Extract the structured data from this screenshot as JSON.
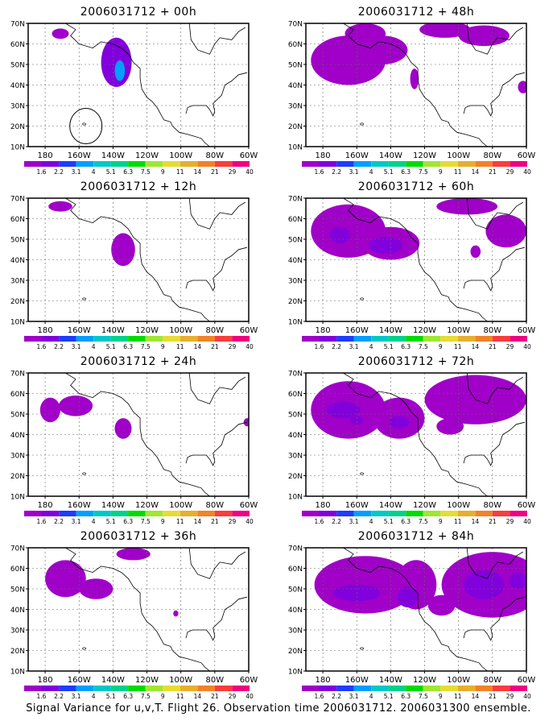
{
  "panels": [
    {
      "title": "2006031712 + 00h",
      "overlay": "ellipse",
      "blobs": [
        {
          "cx": -138,
          "cy": 51,
          "rx": 9,
          "ry": 12,
          "level": 1
        },
        {
          "cx": -171,
          "cy": 65,
          "rx": 5,
          "ry": 2.5,
          "level": 0
        },
        {
          "cx": -136,
          "cy": 47,
          "rx": 3,
          "ry": 5,
          "level": 3
        }
      ]
    },
    {
      "title": "2006031712 + 48h",
      "blobs": [
        {
          "cx": -165,
          "cy": 52,
          "rx": 22,
          "ry": 12,
          "level": 0
        },
        {
          "cx": -155,
          "cy": 65,
          "rx": 12,
          "ry": 5,
          "level": 0
        },
        {
          "cx": -145,
          "cy": 57,
          "rx": 15,
          "ry": 7,
          "level": 0
        },
        {
          "cx": -108,
          "cy": 67,
          "rx": 15,
          "ry": 4,
          "level": 0
        },
        {
          "cx": -85,
          "cy": 64,
          "rx": 15,
          "ry": 5,
          "level": 0
        },
        {
          "cx": -126,
          "cy": 43,
          "rx": 2.5,
          "ry": 5,
          "level": 0
        },
        {
          "cx": -62,
          "cy": 39,
          "rx": 3,
          "ry": 3,
          "level": 0
        }
      ]
    },
    {
      "title": "2006031712 + 12h",
      "blobs": [
        {
          "cx": -134,
          "cy": 45,
          "rx": 7,
          "ry": 8,
          "level": 0
        },
        {
          "cx": -171,
          "cy": 66,
          "rx": 7,
          "ry": 2.5,
          "level": 0
        }
      ]
    },
    {
      "title": "2006031712 + 60h",
      "blobs": [
        {
          "cx": -165,
          "cy": 54,
          "rx": 22,
          "ry": 13,
          "level": 0
        },
        {
          "cx": -140,
          "cy": 48,
          "rx": 17,
          "ry": 8,
          "level": 0
        },
        {
          "cx": -170,
          "cy": 52,
          "rx": 6,
          "ry": 4,
          "level": 1
        },
        {
          "cx": -143,
          "cy": 47,
          "rx": 10,
          "ry": 4,
          "level": 1
        },
        {
          "cx": -95,
          "cy": 66,
          "rx": 18,
          "ry": 4,
          "level": 0
        },
        {
          "cx": -72,
          "cy": 54,
          "rx": 12,
          "ry": 8,
          "level": 0
        },
        {
          "cx": -90,
          "cy": 44,
          "rx": 3,
          "ry": 3,
          "level": 0
        }
      ]
    },
    {
      "title": "2006031712 + 24h",
      "blobs": [
        {
          "cx": -162,
          "cy": 54,
          "rx": 10,
          "ry": 5,
          "level": 0
        },
        {
          "cx": -177,
          "cy": 52,
          "rx": 6,
          "ry": 6,
          "level": 0
        },
        {
          "cx": -134,
          "cy": 43,
          "rx": 5,
          "ry": 5,
          "level": 0
        },
        {
          "cx": -61,
          "cy": 46,
          "rx": 2,
          "ry": 2,
          "level": 0
        }
      ]
    },
    {
      "title": "2006031712 + 72h",
      "blobs": [
        {
          "cx": -165,
          "cy": 52,
          "rx": 22,
          "ry": 14,
          "level": 0
        },
        {
          "cx": -135,
          "cy": 48,
          "rx": 15,
          "ry": 10,
          "level": 0
        },
        {
          "cx": -90,
          "cy": 57,
          "rx": 30,
          "ry": 12,
          "level": 0
        },
        {
          "cx": -105,
          "cy": 44,
          "rx": 8,
          "ry": 4,
          "level": 0
        },
        {
          "cx": -168,
          "cy": 52,
          "rx": 10,
          "ry": 4,
          "level": 1
        },
        {
          "cx": -135,
          "cy": 46,
          "rx": 6,
          "ry": 3,
          "level": 1
        },
        {
          "cx": -160,
          "cy": 47,
          "rx": 4,
          "ry": 2,
          "level": 1
        }
      ]
    },
    {
      "title": "2006031712 + 36h",
      "blobs": [
        {
          "cx": -168,
          "cy": 55,
          "rx": 12,
          "ry": 9,
          "level": 0
        },
        {
          "cx": -150,
          "cy": 50,
          "rx": 10,
          "ry": 5,
          "level": 0
        },
        {
          "cx": -128,
          "cy": 67,
          "rx": 10,
          "ry": 3,
          "level": 0
        },
        {
          "cx": -103,
          "cy": 38,
          "rx": 1.5,
          "ry": 1.5,
          "level": 0
        }
      ]
    },
    {
      "title": "2006031712 + 84h",
      "blobs": [
        {
          "cx": -155,
          "cy": 52,
          "rx": 30,
          "ry": 14,
          "level": 0
        },
        {
          "cx": -125,
          "cy": 52,
          "rx": 12,
          "ry": 12,
          "level": 0
        },
        {
          "cx": -80,
          "cy": 52,
          "rx": 30,
          "ry": 16,
          "level": 0
        },
        {
          "cx": -110,
          "cy": 42,
          "rx": 8,
          "ry": 5,
          "level": 0
        },
        {
          "cx": -160,
          "cy": 48,
          "rx": 14,
          "ry": 4,
          "level": 1
        },
        {
          "cx": -130,
          "cy": 46,
          "rx": 6,
          "ry": 5,
          "level": 1
        },
        {
          "cx": -85,
          "cy": 52,
          "rx": 12,
          "ry": 7,
          "level": 1
        },
        {
          "cx": -65,
          "cy": 54,
          "rx": 5,
          "ry": 4,
          "level": 1
        }
      ]
    }
  ],
  "map": {
    "lon_range": [
      -190,
      -60
    ],
    "lat_range": [
      10,
      70
    ],
    "lon_ticks": [
      -180,
      -160,
      -140,
      -120,
      -100,
      -80,
      -60
    ],
    "lon_labels": [
      "180",
      "160W",
      "140W",
      "120W",
      "100W",
      "80W",
      "60W"
    ],
    "lat_ticks": [
      10,
      20,
      30,
      40,
      50,
      60,
      70
    ],
    "lat_labels": [
      "10N",
      "20N",
      "30N",
      "40N",
      "50N",
      "60N",
      "70N"
    ]
  },
  "colorbar": {
    "colors": [
      "#a000c8",
      "#8200dc",
      "#1e3cff",
      "#00a0ff",
      "#00c8c8",
      "#00d28c",
      "#00dc00",
      "#a0e632",
      "#e6dc32",
      "#e6af2d",
      "#f08228",
      "#fa3c3c",
      "#f00082"
    ],
    "labels": [
      "1.6",
      "2.2",
      "3.1",
      "4",
      "5.1",
      "6.3",
      "7.5",
      "9",
      "11",
      "14",
      "21",
      "29",
      "40"
    ]
  },
  "caption": "Signal Variance for u,v,T. Flight 26. Observation time 2006031712. 2006031300 ensemble."
}
